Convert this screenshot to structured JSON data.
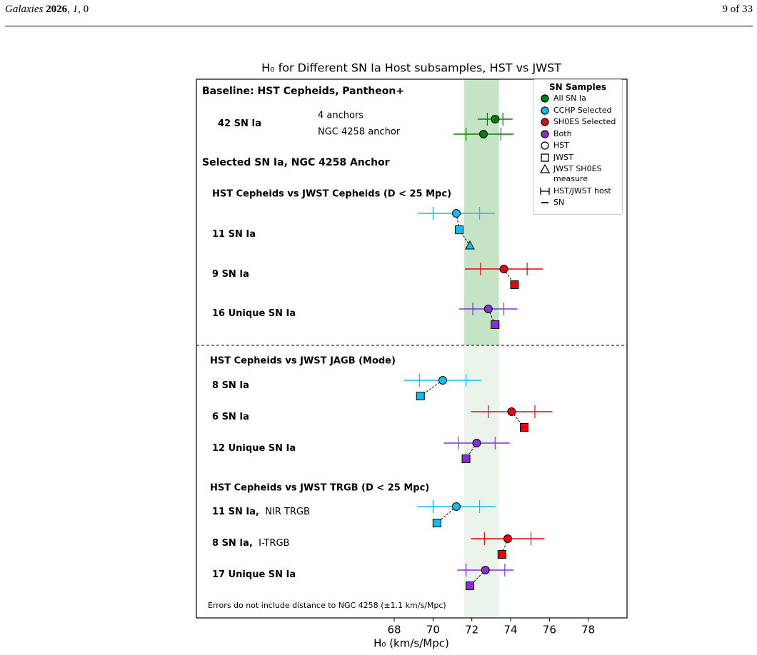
{
  "header": {
    "journal": "Galaxies",
    "year": "2026",
    "volume": "1",
    "article": "0",
    "page": "9 of 33"
  },
  "chart_data": {
    "type": "errorbar",
    "title": "H₀ for Different SN Ia Host subsamples, HST vs JWST",
    "xlabel": "H₀ (km/s/Mpc)",
    "xlim": [
      57.8,
      80
    ],
    "xticks": [
      68,
      70,
      72,
      74,
      76,
      78
    ],
    "band": [
      71.6,
      73.4
    ],
    "headings": [
      "Baseline: HST Cepheids, Pantheon+",
      "Selected SN Ia, NGC 4258 Anchor",
      "HST Cepheids vs JWST Cepheids (D < 25 Mpc)",
      "HST Cepheids vs JWST JAGB (Mode)",
      "HST Cepheids vs JWST TRGB (D < 25 Mpc)"
    ],
    "rows": [
      {
        "label": "42 SN Ia",
        "note": "4 anchors",
        "color": "#008000",
        "hst": {
          "value": 73.2,
          "err_sn": 0.9,
          "err_host": 0.4
        },
        "jwst": []
      },
      {
        "note": "NGC 4258 anchor",
        "color": "#008000",
        "hst": {
          "value": 72.6,
          "err_sn": 1.55,
          "err_host": 0.9
        },
        "jwst": []
      },
      {
        "label": "11 SN Ia",
        "color": "#10bff0",
        "hst": {
          "value": 71.2,
          "err_sn": 2.0,
          "err_host": 1.2
        },
        "jwst": [
          {
            "marker": "square",
            "value": 71.35
          },
          {
            "marker": "triangle",
            "value": 71.9
          }
        ]
      },
      {
        "label": "9 SN Ia",
        "color": "#e8000b",
        "hst": {
          "value": 73.65,
          "err_sn": 2.0,
          "err_host": 1.2
        },
        "jwst": [
          {
            "marker": "square",
            "value": 74.2
          }
        ]
      },
      {
        "label": "16 Unique SN Ia",
        "color": "#8a2be2",
        "hst": {
          "value": 72.85,
          "err_sn": 1.5,
          "err_host": 0.8
        },
        "jwst": [
          {
            "marker": "square",
            "value": 73.2
          }
        ]
      },
      {
        "label": "8 SN Ia",
        "color": "#10bff0",
        "hst": {
          "value": 70.5,
          "err_sn": 2.0,
          "err_host": 1.2
        },
        "jwst": [
          {
            "marker": "square",
            "value": 69.35
          }
        ]
      },
      {
        "label": "6 SN Ia",
        "color": "#e8000b",
        "hst": {
          "value": 74.05,
          "err_sn": 2.1,
          "err_host": 1.2
        },
        "jwst": [
          {
            "marker": "square",
            "value": 74.7
          }
        ]
      },
      {
        "label": "12 Unique SN Ia",
        "color": "#8a2be2",
        "hst": {
          "value": 72.25,
          "err_sn": 1.7,
          "err_host": 0.95
        },
        "jwst": [
          {
            "marker": "square",
            "value": 71.7
          }
        ]
      },
      {
        "label": "11 SN Ia,",
        "note": "NIR TRGB",
        "color": "#10bff0",
        "hst": {
          "value": 71.2,
          "err_sn": 2.0,
          "err_host": 1.2
        },
        "jwst": [
          {
            "marker": "square",
            "value": 70.2
          }
        ]
      },
      {
        "label": "8 SN Ia,",
        "note": "I-TRGB",
        "color": "#e8000b",
        "hst": {
          "value": 73.85,
          "err_sn": 1.9,
          "err_host": 1.2
        },
        "jwst": [
          {
            "marker": "square",
            "value": 73.55
          }
        ]
      },
      {
        "label": "17 Unique SN Ia",
        "color": "#8a2be2",
        "hst": {
          "value": 72.7,
          "err_sn": 1.45,
          "err_host": 1.0
        },
        "jwst": [
          {
            "marker": "square",
            "value": 71.9
          }
        ]
      }
    ],
    "legend": {
      "title": "SN Samples",
      "entries": [
        {
          "label": "All SN Ia",
          "marker": "circle",
          "color": "#008000"
        },
        {
          "label": "CCHP Selected",
          "marker": "circle",
          "color": "#10bff0"
        },
        {
          "label": "SH0ES Selected",
          "marker": "circle",
          "color": "#e8000b"
        },
        {
          "label": "Both",
          "marker": "circle",
          "color": "#8a2be2"
        },
        {
          "label": "HST",
          "marker": "circle"
        },
        {
          "label": "JWST",
          "marker": "square"
        },
        {
          "label": "JWST SH0ES measure",
          "marker": "triangle"
        },
        {
          "label": "HST/JWST host",
          "marker": "capped"
        },
        {
          "label": "SN",
          "marker": "dash"
        }
      ]
    },
    "note": "Errors do not include distance to NGC 4258 (±1.1 km/s/Mpc)"
  }
}
